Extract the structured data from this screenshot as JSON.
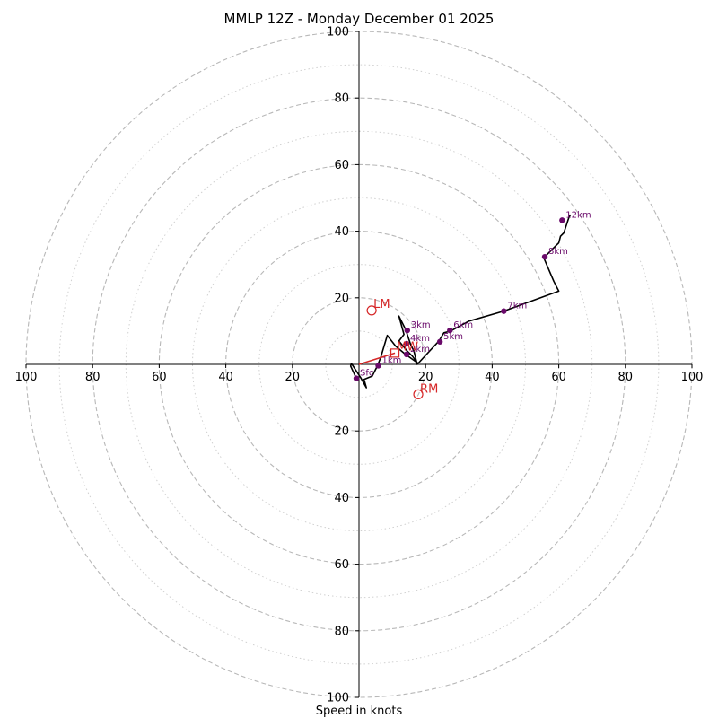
{
  "chart_data": {
    "type": "hodograph",
    "title": "MMLP 12Z - Monday December 01 2025",
    "xlabel": "Speed in knots",
    "max_speed": 100,
    "ring_major": [
      20,
      40,
      60,
      80,
      100
    ],
    "ring_minor": [
      10,
      30,
      50,
      70,
      90
    ],
    "tick_values": [
      20,
      40,
      60,
      80,
      100
    ],
    "tick_labels": {
      "x": [
        {
          "value": -100,
          "label": "100"
        },
        {
          "value": -80,
          "label": "80"
        },
        {
          "value": -60,
          "label": "60"
        },
        {
          "value": -40,
          "label": "40"
        },
        {
          "value": -20,
          "label": "20"
        },
        {
          "value": 20,
          "label": "20"
        },
        {
          "value": 40,
          "label": "40"
        },
        {
          "value": 60,
          "label": "60"
        },
        {
          "value": 80,
          "label": "80"
        },
        {
          "value": 100,
          "label": "100"
        }
      ],
      "y": [
        {
          "value": 100,
          "label": "100"
        },
        {
          "value": 80,
          "label": "80"
        },
        {
          "value": 60,
          "label": "60"
        },
        {
          "value": 40,
          "label": "40"
        },
        {
          "value": 20,
          "label": "20"
        },
        {
          "value": -20,
          "label": "20"
        },
        {
          "value": -40,
          "label": "40"
        },
        {
          "value": -60,
          "label": "60"
        },
        {
          "value": -80,
          "label": "80"
        },
        {
          "value": -100,
          "label": "100"
        }
      ]
    },
    "hodograph_trace": [
      [
        -0.8,
        -4.2
      ],
      [
        -2.5,
        -0.5
      ],
      [
        -2.3,
        0.3
      ],
      [
        0.5,
        -4.0
      ],
      [
        2.2,
        -7.0
      ],
      [
        1.5,
        -4.5
      ],
      [
        4.0,
        -3.5
      ],
      [
        5.5,
        -0.5
      ],
      [
        6.5,
        2.0
      ],
      [
        8.5,
        8.7
      ],
      [
        11.0,
        5.5
      ],
      [
        14.0,
        3.0
      ],
      [
        17.5,
        0.5
      ],
      [
        16.0,
        2.5
      ],
      [
        14.5,
        4.0
      ],
      [
        12.0,
        7.0
      ],
      [
        13.5,
        9.0
      ],
      [
        12.0,
        14.5
      ],
      [
        14.0,
        10.5
      ],
      [
        15.5,
        6.0
      ],
      [
        16.5,
        4.0
      ],
      [
        17.5,
        0.0
      ],
      [
        24.0,
        7.0
      ],
      [
        25.5,
        9.5
      ],
      [
        27.5,
        10.0
      ],
      [
        33.0,
        13.0
      ],
      [
        43.5,
        16.0
      ],
      [
        60.0,
        22.0
      ],
      [
        58.5,
        25.0
      ],
      [
        55.5,
        32.0
      ],
      [
        58.5,
        35.0
      ],
      [
        60.0,
        36.5
      ],
      [
        60.5,
        38.5
      ],
      [
        61.5,
        39.5
      ],
      [
        63.0,
        44.0
      ],
      [
        63.5,
        45.0
      ]
    ],
    "height_markers": [
      {
        "label": "Sfc",
        "u": -0.8,
        "v": -4.2
      },
      {
        "label": "1km",
        "u": 5.8,
        "v": -0.4
      },
      {
        "label": "2km",
        "u": 14.3,
        "v": 3.0
      },
      {
        "label": "3km",
        "u": 14.5,
        "v": 10.2
      },
      {
        "label": "4km",
        "u": 14.3,
        "v": 6.2
      },
      {
        "label": "5km",
        "u": 24.3,
        "v": 6.8
      },
      {
        "label": "6km",
        "u": 27.3,
        "v": 10.2
      },
      {
        "label": "7km",
        "u": 43.5,
        "v": 16.0
      },
      {
        "label": "8km",
        "u": 55.8,
        "v": 32.3
      },
      {
        "label": "12km",
        "u": 61.0,
        "v": 43.3
      }
    ],
    "storm_motion": {
      "lm": {
        "label": "LM",
        "u": 3.8,
        "v": 16.2
      },
      "rm": {
        "label": "RM",
        "u": 17.8,
        "v": -9.0
      },
      "mw": {
        "label": "MW",
        "u": 10.8,
        "v": 3.4
      },
      "shear_vector": {
        "from": [
          0,
          0
        ],
        "to": [
          10.8,
          3.4
        ]
      }
    },
    "colors": {
      "trace": "#000000",
      "markers": "#6a0a6a",
      "storm": "#d62728",
      "rings": "#b8b8b8",
      "axes": "#000000"
    }
  }
}
